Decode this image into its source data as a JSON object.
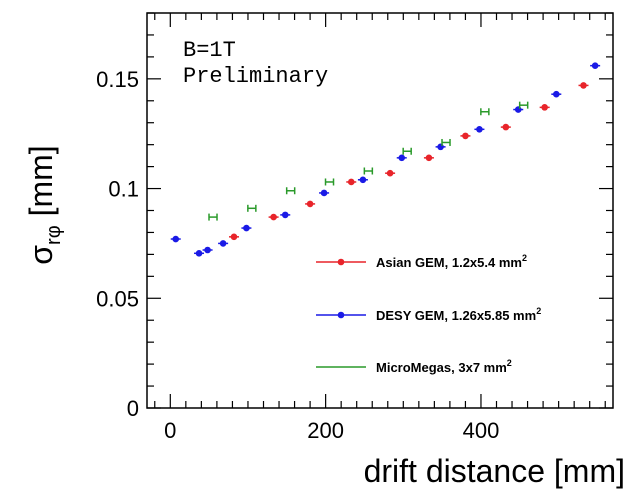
{
  "chart_data": {
    "type": "scatter",
    "xlabel": "drift distance [mm]",
    "ylabel_main": "σ",
    "ylabel_sub": "rφ",
    "ylabel_unit": " [mm]",
    "xlim": [
      -30,
      570
    ],
    "ylim": [
      0,
      0.18
    ],
    "x_ticks": [
      0,
      200,
      400
    ],
    "x_tick_labels": [
      "0",
      "200",
      "400"
    ],
    "y_ticks": [
      0,
      0.05,
      0.1,
      0.15
    ],
    "y_tick_labels": [
      "0",
      "0.05",
      "0.1",
      "0.15"
    ],
    "annotations": [
      "B=1T",
      "Preliminary"
    ],
    "legend_placement": "lower-right",
    "series": [
      {
        "name": "Asian GEM, 1.2x5.4 mm",
        "name_sup": "2",
        "color": "#e8242a",
        "marker": "dot",
        "x": [
          82,
          133,
          180,
          233,
          283,
          333,
          380,
          432,
          482,
          532
        ],
        "y": [
          0.078,
          0.087,
          0.093,
          0.103,
          0.107,
          0.114,
          0.124,
          0.128,
          0.137,
          0.147
        ]
      },
      {
        "name": "DESY GEM, 1.26x5.85 mm",
        "name_sup": "2",
        "color": "#1a1ae6",
        "marker": "dot",
        "x": [
          7,
          37,
          48,
          68,
          98,
          148,
          198,
          248,
          298,
          348,
          398,
          448,
          497,
          547
        ],
        "y": [
          0.077,
          0.0705,
          0.072,
          0.075,
          0.082,
          0.088,
          0.098,
          0.104,
          0.114,
          0.119,
          0.127,
          0.136,
          0.143,
          0.156
        ]
      },
      {
        "name": "MicroMegas, 3x7 mm",
        "name_sup": "2",
        "color": "#2a9a2a",
        "marker": "H",
        "x": [
          55,
          105,
          155,
          205,
          255,
          305,
          355,
          405,
          455
        ],
        "y": [
          0.087,
          0.091,
          0.099,
          0.103,
          0.108,
          0.117,
          0.121,
          0.135,
          0.138
        ]
      }
    ]
  }
}
